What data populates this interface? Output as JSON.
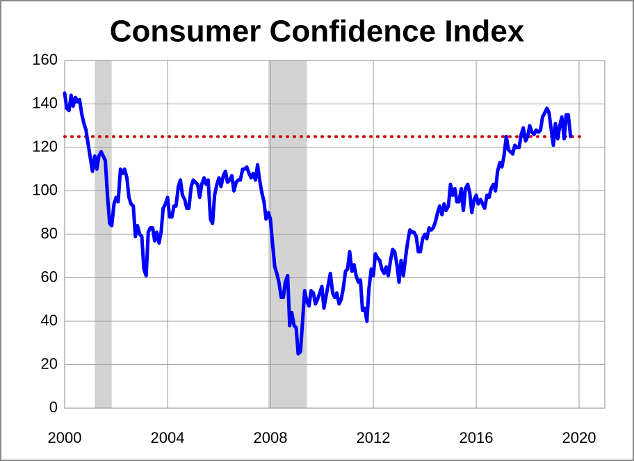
{
  "chart_data": {
    "type": "line",
    "title": "Consumer Confidence Index",
    "x": [
      2000,
      2000.08,
      2000.17,
      2000.25,
      2000.33,
      2000.42,
      2000.5,
      2000.58,
      2000.67,
      2000.75,
      2000.83,
      2000.92,
      2001,
      2001.08,
      2001.17,
      2001.25,
      2001.33,
      2001.42,
      2001.5,
      2001.58,
      2001.67,
      2001.75,
      2001.83,
      2001.92,
      2002,
      2002.08,
      2002.17,
      2002.25,
      2002.33,
      2002.42,
      2002.5,
      2002.58,
      2002.67,
      2002.75,
      2002.83,
      2002.92,
      2003,
      2003.08,
      2003.17,
      2003.25,
      2003.33,
      2003.42,
      2003.5,
      2003.58,
      2003.67,
      2003.75,
      2003.83,
      2003.92,
      2004,
      2004.08,
      2004.17,
      2004.25,
      2004.33,
      2004.42,
      2004.5,
      2004.58,
      2004.67,
      2004.75,
      2004.83,
      2004.92,
      2005,
      2005.08,
      2005.17,
      2005.25,
      2005.33,
      2005.42,
      2005.5,
      2005.58,
      2005.67,
      2005.75,
      2005.83,
      2005.92,
      2006,
      2006.08,
      2006.17,
      2006.25,
      2006.33,
      2006.42,
      2006.5,
      2006.58,
      2006.67,
      2006.75,
      2006.83,
      2006.92,
      2007,
      2007.08,
      2007.17,
      2007.25,
      2007.33,
      2007.42,
      2007.5,
      2007.58,
      2007.67,
      2007.75,
      2007.83,
      2007.92,
      2008,
      2008.08,
      2008.17,
      2008.25,
      2008.33,
      2008.42,
      2008.5,
      2008.58,
      2008.67,
      2008.75,
      2008.83,
      2008.92,
      2009,
      2009.08,
      2009.17,
      2009.25,
      2009.33,
      2009.42,
      2009.5,
      2009.58,
      2009.67,
      2009.75,
      2009.83,
      2009.92,
      2010,
      2010.08,
      2010.17,
      2010.25,
      2010.33,
      2010.42,
      2010.5,
      2010.58,
      2010.67,
      2010.75,
      2010.83,
      2010.92,
      2011,
      2011.08,
      2011.17,
      2011.25,
      2011.33,
      2011.42,
      2011.5,
      2011.58,
      2011.67,
      2011.75,
      2011.83,
      2011.92,
      2012,
      2012.08,
      2012.17,
      2012.25,
      2012.33,
      2012.42,
      2012.5,
      2012.58,
      2012.67,
      2012.75,
      2012.83,
      2012.92,
      2013,
      2013.08,
      2013.17,
      2013.25,
      2013.33,
      2013.42,
      2013.5,
      2013.58,
      2013.67,
      2013.75,
      2013.83,
      2013.92,
      2014,
      2014.08,
      2014.17,
      2014.25,
      2014.33,
      2014.42,
      2014.5,
      2014.58,
      2014.67,
      2014.75,
      2014.83,
      2014.92,
      2015,
      2015.08,
      2015.17,
      2015.25,
      2015.33,
      2015.42,
      2015.5,
      2015.58,
      2015.67,
      2015.75,
      2015.83,
      2015.92,
      2016,
      2016.08,
      2016.17,
      2016.25,
      2016.33,
      2016.42,
      2016.5,
      2016.58,
      2016.67,
      2016.75,
      2016.83,
      2016.92,
      2017,
      2017.08,
      2017.17,
      2017.25,
      2017.33,
      2017.42,
      2017.5,
      2017.58,
      2017.67,
      2017.75,
      2017.83,
      2017.92,
      2018,
      2018.08,
      2018.17,
      2018.25,
      2018.33,
      2018.42,
      2018.5,
      2018.58,
      2018.67,
      2018.75,
      2018.83,
      2018.92,
      2019,
      2019.08,
      2019.17,
      2019.25,
      2019.33,
      2019.42,
      2019.5,
      2019.58,
      2019.67
    ],
    "series": [
      {
        "color": "#0000ff",
        "values": [
          145,
          138,
          137,
          144,
          139,
          143,
          141,
          142,
          135,
          131,
          128,
          121,
          115,
          109,
          116,
          110,
          116,
          118,
          116,
          114,
          97,
          85,
          84,
          94,
          97,
          95,
          110,
          108,
          110,
          106,
          97,
          94,
          93,
          79,
          84,
          80,
          79,
          64,
          61,
          81,
          83,
          83,
          77,
          81,
          76,
          81,
          92,
          94,
          97,
          88,
          88,
          93,
          93,
          102,
          105,
          98,
          96,
          92,
          92,
          102,
          105,
          104,
          103,
          97,
          103,
          106,
          103,
          105,
          87,
          85,
          98,
          103,
          106,
          102,
          107,
          109,
          104,
          105,
          107,
          100,
          104,
          105,
          105,
          110,
          110,
          111,
          108,
          106,
          108,
          105,
          112,
          105,
          99,
          95,
          87,
          90,
          87,
          76,
          65,
          62,
          58,
          51,
          51,
          58,
          61,
          38,
          44,
          38,
          37,
          25,
          26,
          40,
          54,
          49,
          47,
          54,
          53,
          48,
          50,
          53,
          56,
          46,
          52,
          57,
          62,
          53,
          51,
          53,
          48,
          50,
          55,
          63,
          64,
          72,
          63,
          66,
          61,
          58,
          59,
          45,
          46,
          40,
          55,
          64,
          61,
          71,
          69,
          68,
          64,
          62,
          65,
          61,
          68,
          73,
          72,
          66,
          58,
          68,
          61,
          69,
          76,
          82,
          81,
          81,
          79,
          72,
          72,
          78,
          80,
          78,
          83,
          82,
          83,
          86,
          90,
          93,
          89,
          94,
          91,
          93,
          103,
          98,
          101,
          95,
          95,
          101,
          91,
          101,
          103,
          99,
          90,
          96,
          98,
          94,
          96,
          94,
          92,
          98,
          97,
          101,
          103,
          100,
          109,
          113,
          111,
          116,
          125,
          119,
          118,
          117,
          121,
          120,
          120,
          126,
          129,
          123,
          125,
          130,
          127,
          126,
          128,
          127,
          128,
          134,
          136,
          138,
          136,
          128,
          121,
          131,
          124,
          130,
          134,
          124,
          135,
          135,
          125
        ]
      }
    ],
    "recessions": [
      [
        2001.17,
        2001.83
      ],
      [
        2007.92,
        2009.42
      ]
    ],
    "recession_color": "#d3d3d3",
    "reference_line": 125,
    "reference_color": "#cc0000",
    "xlim": [
      2000,
      2021
    ],
    "xticks": [
      2000,
      2004,
      2008,
      2012,
      2016,
      2020
    ],
    "ylim": [
      0,
      160
    ],
    "yticks": [
      0,
      20,
      40,
      60,
      80,
      100,
      120,
      140,
      160
    ],
    "grid": true
  }
}
